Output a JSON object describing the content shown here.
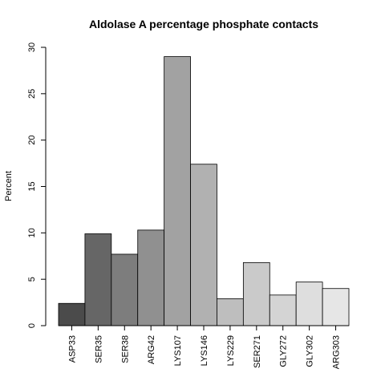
{
  "chart_data": {
    "type": "bar",
    "title": "Aldolase A percentage phosphate contacts",
    "xlabel": "",
    "ylabel": "Percent",
    "categories": [
      "ASP33",
      "SER35",
      "SER38",
      "ARG42",
      "LYS107",
      "LYS146",
      "LYS229",
      "SER271",
      "GLY272",
      "GLY302",
      "ARG303"
    ],
    "values": [
      2.4,
      9.9,
      7.7,
      10.3,
      29.0,
      17.4,
      2.9,
      6.8,
      3.3,
      4.7,
      4.0
    ],
    "colors": [
      "#4b4b4b",
      "#666666",
      "#7d7d7d",
      "#909090",
      "#a2a2a2",
      "#b1b1b1",
      "#bebebe",
      "#cacaca",
      "#d4d4d4",
      "#dedede",
      "#e6e6e6"
    ],
    "ylim": [
      0,
      30
    ],
    "yticks": [
      0,
      5,
      10,
      15,
      20,
      25,
      30
    ],
    "grid": false,
    "legend": "none"
  }
}
